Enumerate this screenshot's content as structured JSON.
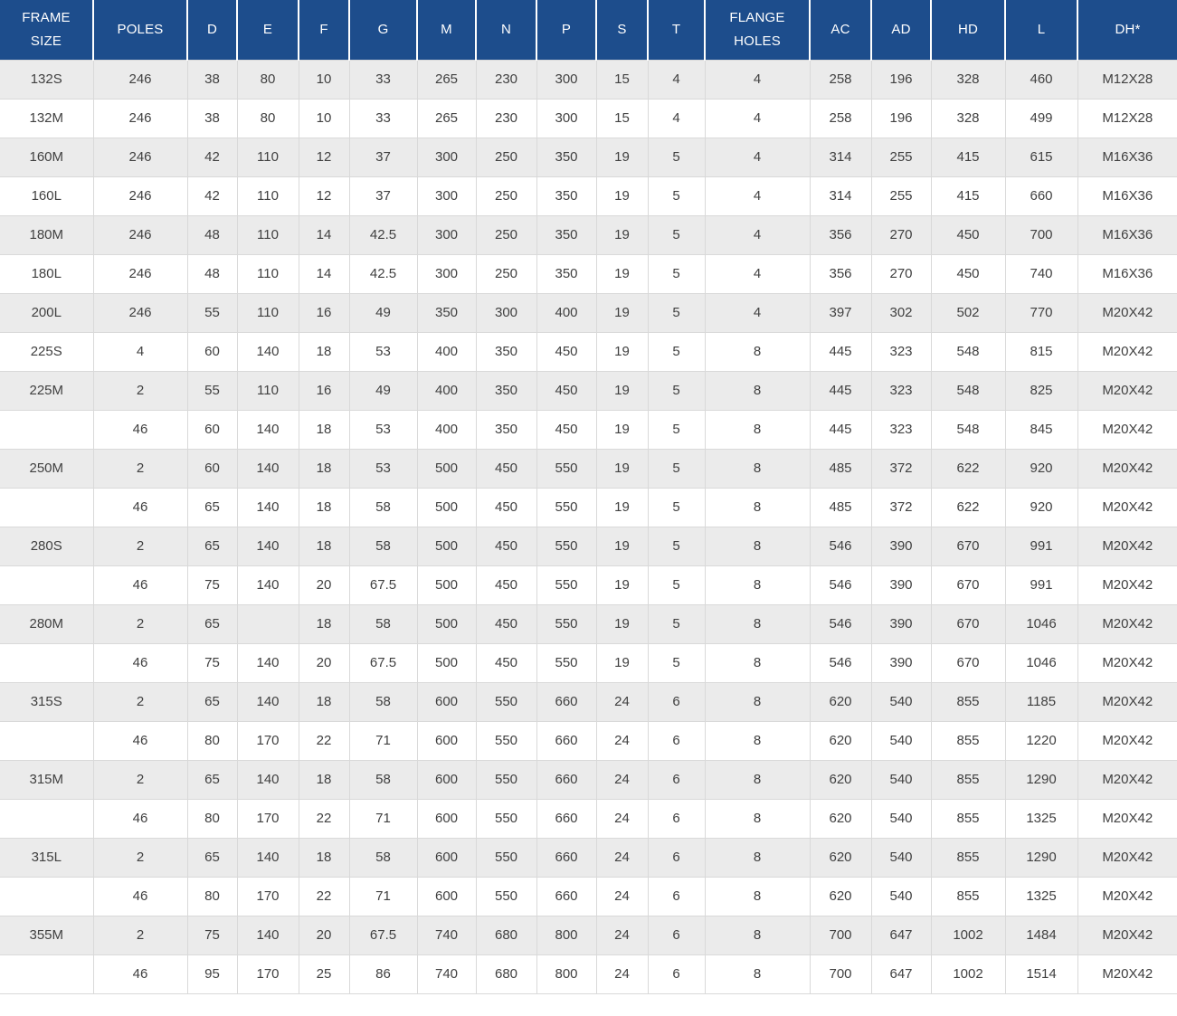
{
  "table": {
    "columns": [
      "FRAME SIZE",
      "POLES",
      "D",
      "E",
      "F",
      "G",
      "M",
      "N",
      "P",
      "S",
      "T",
      "FLANGE HOLES",
      "AC",
      "AD",
      "HD",
      "L",
      "DH*"
    ],
    "rows": [
      [
        "132S",
        "246",
        "38",
        "80",
        "10",
        "33",
        "265",
        "230",
        "300",
        "15",
        "4",
        "4",
        "258",
        "196",
        "328",
        "460",
        "M12X28"
      ],
      [
        "132M",
        "246",
        "38",
        "80",
        "10",
        "33",
        "265",
        "230",
        "300",
        "15",
        "4",
        "4",
        "258",
        "196",
        "328",
        "499",
        "M12X28"
      ],
      [
        "160M",
        "246",
        "42",
        "110",
        "12",
        "37",
        "300",
        "250",
        "350",
        "19",
        "5",
        "4",
        "314",
        "255",
        "415",
        "615",
        "M16X36"
      ],
      [
        "160L",
        "246",
        "42",
        "110",
        "12",
        "37",
        "300",
        "250",
        "350",
        "19",
        "5",
        "4",
        "314",
        "255",
        "415",
        "660",
        "M16X36"
      ],
      [
        "180M",
        "246",
        "48",
        "110",
        "14",
        "42.5",
        "300",
        "250",
        "350",
        "19",
        "5",
        "4",
        "356",
        "270",
        "450",
        "700",
        "M16X36"
      ],
      [
        "180L",
        "246",
        "48",
        "110",
        "14",
        "42.5",
        "300",
        "250",
        "350",
        "19",
        "5",
        "4",
        "356",
        "270",
        "450",
        "740",
        "M16X36"
      ],
      [
        "200L",
        "246",
        "55",
        "110",
        "16",
        "49",
        "350",
        "300",
        "400",
        "19",
        "5",
        "4",
        "397",
        "302",
        "502",
        "770",
        "M20X42"
      ],
      [
        "225S",
        "4",
        "60",
        "140",
        "18",
        "53",
        "400",
        "350",
        "450",
        "19",
        "5",
        "8",
        "445",
        "323",
        "548",
        "815",
        "M20X42"
      ],
      [
        "225M",
        "2",
        "55",
        "110",
        "16",
        "49",
        "400",
        "350",
        "450",
        "19",
        "5",
        "8",
        "445",
        "323",
        "548",
        "825",
        "M20X42"
      ],
      [
        "",
        "46",
        "60",
        "140",
        "18",
        "53",
        "400",
        "350",
        "450",
        "19",
        "5",
        "8",
        "445",
        "323",
        "548",
        "845",
        "M20X42"
      ],
      [
        "250M",
        "2",
        "60",
        "140",
        "18",
        "53",
        "500",
        "450",
        "550",
        "19",
        "5",
        "8",
        "485",
        "372",
        "622",
        "920",
        "M20X42"
      ],
      [
        "",
        "46",
        "65",
        "140",
        "18",
        "58",
        "500",
        "450",
        "550",
        "19",
        "5",
        "8",
        "485",
        "372",
        "622",
        "920",
        "M20X42"
      ],
      [
        "280S",
        "2",
        "65",
        "140",
        "18",
        "58",
        "500",
        "450",
        "550",
        "19",
        "5",
        "8",
        "546",
        "390",
        "670",
        "991",
        "M20X42"
      ],
      [
        "",
        "46",
        "75",
        "140",
        "20",
        "67.5",
        "500",
        "450",
        "550",
        "19",
        "5",
        "8",
        "546",
        "390",
        "670",
        "991",
        "M20X42"
      ],
      [
        "280M",
        "2",
        "65",
        "",
        "18",
        "58",
        "500",
        "450",
        "550",
        "19",
        "5",
        "8",
        "546",
        "390",
        "670",
        "1046",
        "M20X42"
      ],
      [
        "",
        "46",
        "75",
        "140",
        "20",
        "67.5",
        "500",
        "450",
        "550",
        "19",
        "5",
        "8",
        "546",
        "390",
        "670",
        "1046",
        "M20X42"
      ],
      [
        "315S",
        "2",
        "65",
        "140",
        "18",
        "58",
        "600",
        "550",
        "660",
        "24",
        "6",
        "8",
        "620",
        "540",
        "855",
        "1185",
        "M20X42"
      ],
      [
        "",
        "46",
        "80",
        "170",
        "22",
        "71",
        "600",
        "550",
        "660",
        "24",
        "6",
        "8",
        "620",
        "540",
        "855",
        "1220",
        "M20X42"
      ],
      [
        "315M",
        "2",
        "65",
        "140",
        "18",
        "58",
        "600",
        "550",
        "660",
        "24",
        "6",
        "8",
        "620",
        "540",
        "855",
        "1290",
        "M20X42"
      ],
      [
        "",
        "46",
        "80",
        "170",
        "22",
        "71",
        "600",
        "550",
        "660",
        "24",
        "6",
        "8",
        "620",
        "540",
        "855",
        "1325",
        "M20X42"
      ],
      [
        "315L",
        "2",
        "65",
        "140",
        "18",
        "58",
        "600",
        "550",
        "660",
        "24",
        "6",
        "8",
        "620",
        "540",
        "855",
        "1290",
        "M20X42"
      ],
      [
        "",
        "46",
        "80",
        "170",
        "22",
        "71",
        "600",
        "550",
        "660",
        "24",
        "6",
        "8",
        "620",
        "540",
        "855",
        "1325",
        "M20X42"
      ],
      [
        "355M",
        "2",
        "75",
        "140",
        "20",
        "67.5",
        "740",
        "680",
        "800",
        "24",
        "6",
        "8",
        "700",
        "647",
        "1002",
        "1484",
        "M20X42"
      ],
      [
        "",
        "46",
        "95",
        "170",
        "25",
        "86",
        "740",
        "680",
        "800",
        "24",
        "6",
        "8",
        "700",
        "647",
        "1002",
        "1514",
        "M20X42"
      ]
    ]
  },
  "colors": {
    "header_bg": "#1d4d8c",
    "header_text": "#ffffff",
    "row_stripe": "#ebebeb",
    "row_white": "#ffffff",
    "grid_line": "#d9d9d9",
    "body_text": "#404040"
  }
}
